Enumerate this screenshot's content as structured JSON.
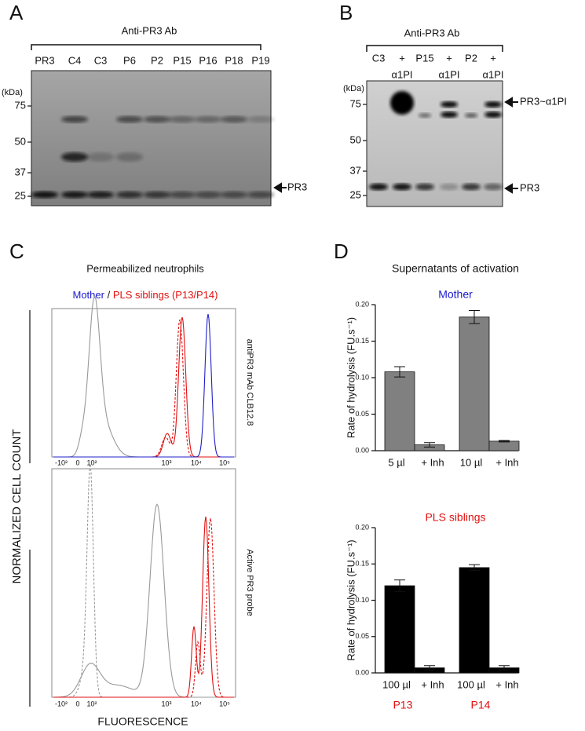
{
  "panels": {
    "A": {
      "label": "A",
      "antibody": "Anti-PR3 Ab",
      "lanes": [
        "PR3",
        "C4",
        "C3",
        "P6",
        "P2",
        "P15",
        "P16",
        "P18",
        "P19"
      ],
      "unit": "(kDa)",
      "markers": [
        75,
        50,
        37,
        25
      ],
      "arrow": "PR3"
    },
    "B": {
      "label": "B",
      "antibody": "Anti-PR3 Ab",
      "lanes": [
        "C3",
        "+",
        "P15",
        "+",
        "P2",
        "+"
      ],
      "lanes_sub": [
        "α1PI",
        "α1PI",
        "α1PI"
      ],
      "unit": "(kDa)",
      "markers": [
        75,
        50,
        37,
        25
      ],
      "arrows": [
        "PR3~α1PI",
        "PR3"
      ]
    },
    "C": {
      "label": "C",
      "title": "Permeabilized neutrophils",
      "legend_mother": "Mother",
      "legend_sep": " / ",
      "legend_pls": "PLS siblings (P13/P14)",
      "y_label": "NORMALIZED CELL COUNT",
      "x_label": "FLUORESCENCE",
      "plots": [
        "antiPR3 mAb CLB12.8",
        "Active PR3 probe"
      ],
      "x_tick_labels": [
        "-10²",
        "0",
        "10²",
        "10³",
        "10⁴",
        "10⁵"
      ]
    },
    "D": {
      "label": "D",
      "title": "Supernatants of activation"
    }
  },
  "chart_data": [
    {
      "type": "bar",
      "subtitle": "Mother",
      "y_label": "Rate of hydrolysis (FU.s⁻¹)",
      "categories": [
        "5 µl",
        "+ Inh",
        "10 µl",
        "+ Inh"
      ],
      "values": [
        0.108,
        0.008,
        0.183,
        0.013
      ],
      "errors": [
        0.007,
        0.003,
        0.009,
        0.001
      ],
      "color": "#808080",
      "ylim": [
        0,
        0.2
      ],
      "yticks": [
        {
          "value": 0,
          "label": "0.00"
        },
        0.05,
        {
          "value": 0.1,
          "label": "0.10"
        },
        0.15,
        {
          "value": 0.2,
          "label": "0.20"
        }
      ]
    },
    {
      "type": "bar",
      "subtitle": "PLS siblings",
      "y_label": "Rate of hydrolysis (FU.s⁻¹)",
      "categories": [
        "100 µl",
        "+ Inh",
        "100 µl",
        "+ Inh"
      ],
      "group_labels": [
        "P13",
        "P14"
      ],
      "values": [
        0.12,
        0.007,
        0.145,
        0.007
      ],
      "errors": [
        0.008,
        0.003,
        0.004,
        0.003
      ],
      "color": "#000000",
      "ylim": [
        0,
        0.2
      ],
      "yticks": [
        {
          "value": 0,
          "label": "0.00"
        },
        0.05,
        {
          "value": 0.1,
          "label": "0.10"
        },
        0.15,
        {
          "value": 0.2,
          "label": "0.20"
        }
      ]
    }
  ]
}
